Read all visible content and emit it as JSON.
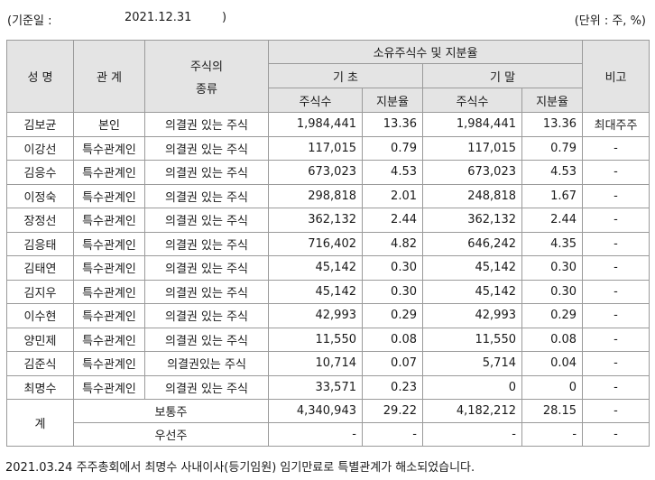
{
  "header": {
    "base_date_label": "(기준일 :",
    "base_date": "2021.12.31",
    "close_paren": ")",
    "unit": "(단위 : 주, %)"
  },
  "columns": {
    "name": "성 명",
    "relation": "관 계",
    "stock_type_line1": "주식의",
    "stock_type_line2": "종류",
    "ownership_group": "소유주식수 및 지분율",
    "begin": "기 초",
    "end": "기 말",
    "note": "비고",
    "shares": "주식수",
    "ratio": "지분율"
  },
  "rows": [
    {
      "name": "김보균",
      "relation": "본인",
      "type": "의결권 있는 주식",
      "begin_shares": "1,984,441",
      "begin_ratio": "13.36",
      "end_shares": "1,984,441",
      "end_ratio": "13.36",
      "note": "최대주주"
    },
    {
      "name": "이강선",
      "relation": "특수관계인",
      "type": "의결권 있는 주식",
      "begin_shares": "117,015",
      "begin_ratio": "0.79",
      "end_shares": "117,015",
      "end_ratio": "0.79",
      "note": "-"
    },
    {
      "name": "김응수",
      "relation": "특수관계인",
      "type": "의결권 있는 주식",
      "begin_shares": "673,023",
      "begin_ratio": "4.53",
      "end_shares": "673,023",
      "end_ratio": "4.53",
      "note": "-"
    },
    {
      "name": "이정숙",
      "relation": "특수관계인",
      "type": "의결권 있는 주식",
      "begin_shares": "298,818",
      "begin_ratio": "2.01",
      "end_shares": "248,818",
      "end_ratio": "1.67",
      "note": "-"
    },
    {
      "name": "장정선",
      "relation": "특수관계인",
      "type": "의결권 있는 주식",
      "begin_shares": "362,132",
      "begin_ratio": "2.44",
      "end_shares": "362,132",
      "end_ratio": "2.44",
      "note": "-"
    },
    {
      "name": "김응태",
      "relation": "특수관계인",
      "type": "의결권 있는 주식",
      "begin_shares": "716,402",
      "begin_ratio": "4.82",
      "end_shares": "646,242",
      "end_ratio": "4.35",
      "note": "-"
    },
    {
      "name": "김태연",
      "relation": "특수관계인",
      "type": "의결권 있는 주식",
      "begin_shares": "45,142",
      "begin_ratio": "0.30",
      "end_shares": "45,142",
      "end_ratio": "0.30",
      "note": "-"
    },
    {
      "name": "김지우",
      "relation": "특수관계인",
      "type": "의결권 있는 주식",
      "begin_shares": "45,142",
      "begin_ratio": "0.30",
      "end_shares": "45,142",
      "end_ratio": "0.30",
      "note": "-"
    },
    {
      "name": "이수현",
      "relation": "특수관계인",
      "type": "의결권 있는 주식",
      "begin_shares": "42,993",
      "begin_ratio": "0.29",
      "end_shares": "42,993",
      "end_ratio": "0.29",
      "note": "-"
    },
    {
      "name": "양민제",
      "relation": "특수관계인",
      "type": "의결권 있는 주식",
      "begin_shares": "11,550",
      "begin_ratio": "0.08",
      "end_shares": "11,550",
      "end_ratio": "0.08",
      "note": "-"
    },
    {
      "name": "김준식",
      "relation": "특수관계인",
      "type": "의결권있는 주식",
      "begin_shares": "10,714",
      "begin_ratio": "0.07",
      "end_shares": "5,714",
      "end_ratio": "0.04",
      "note": "-"
    },
    {
      "name": "최명수",
      "relation": "특수관계인",
      "type": "의결권 있는 주식",
      "begin_shares": "33,571",
      "begin_ratio": "0.23",
      "end_shares": "0",
      "end_ratio": "0",
      "note": "-"
    }
  ],
  "total": {
    "label": "계",
    "common": {
      "type": "보통주",
      "begin_shares": "4,340,943",
      "begin_ratio": "29.22",
      "end_shares": "4,182,212",
      "end_ratio": "28.15",
      "note": "-"
    },
    "preferred": {
      "type": "우선주",
      "begin_shares": "-",
      "begin_ratio": "-",
      "end_shares": "-",
      "end_ratio": "-",
      "note": "-"
    }
  },
  "footnote": "2021.03.24 주주총회에서 최명수 사내이사(등기임원) 임기만료로 특별관계가 해소되었습니다."
}
